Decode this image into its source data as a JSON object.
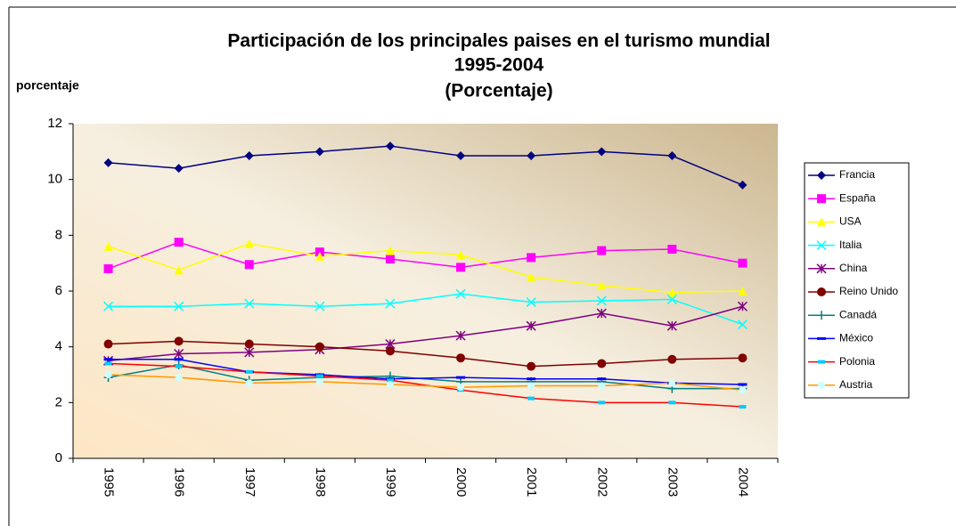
{
  "chart_data": {
    "type": "line",
    "title": "Participación de los principales paises en el turismo mundial",
    "subtitle": "1995-2004",
    "subtitle2": "(Porcentaje)",
    "y_label": "porcentaje",
    "categories": [
      "1995",
      "1996",
      "1997",
      "1998",
      "1999",
      "2000",
      "2001",
      "2002",
      "2003",
      "2004"
    ],
    "ylim": [
      0,
      12
    ],
    "yticks": [
      0,
      2,
      4,
      6,
      8,
      10,
      12
    ],
    "legend": "right",
    "series": [
      {
        "name": "Francia",
        "color": "#000080",
        "marker": "diamond",
        "values": [
          10.6,
          10.4,
          10.85,
          11.0,
          11.2,
          10.85,
          10.85,
          11.0,
          10.85,
          9.8
        ]
      },
      {
        "name": "España",
        "color": "#ff00ff",
        "marker": "square",
        "values": [
          6.8,
          7.75,
          6.95,
          7.4,
          7.15,
          6.85,
          7.2,
          7.45,
          7.5,
          7.0
        ]
      },
      {
        "name": "USA",
        "color": "#ffff00",
        "marker": "triangle",
        "values": [
          7.6,
          6.75,
          7.7,
          7.25,
          7.45,
          7.3,
          6.5,
          6.2,
          5.95,
          6.0
        ]
      },
      {
        "name": "Italia",
        "color": "#00ffff",
        "marker": "x",
        "values": [
          5.45,
          5.45,
          5.55,
          5.45,
          5.55,
          5.9,
          5.6,
          5.65,
          5.7,
          4.8
        ]
      },
      {
        "name": "China",
        "color": "#800080",
        "marker": "star",
        "values": [
          3.5,
          3.75,
          3.8,
          3.9,
          4.1,
          4.4,
          4.75,
          5.2,
          4.75,
          5.45
        ]
      },
      {
        "name": "Reino Unido",
        "color": "#800000",
        "marker": "circle",
        "values": [
          4.1,
          4.2,
          4.1,
          4.0,
          3.85,
          3.6,
          3.3,
          3.4,
          3.55,
          3.6
        ]
      },
      {
        "name": "Canadá",
        "color": "#008080",
        "marker": "plus",
        "values": [
          2.9,
          3.35,
          2.8,
          2.9,
          2.95,
          2.75,
          2.75,
          2.75,
          2.5,
          2.5
        ]
      },
      {
        "name": "México",
        "color": "#0000ff",
        "marker": "dash",
        "values": [
          3.55,
          3.55,
          3.1,
          3.0,
          2.85,
          2.9,
          2.85,
          2.85,
          2.7,
          2.65
        ]
      },
      {
        "name": "Polonia",
        "color": "#ff0000",
        "marker": "square-cyan",
        "values": [
          3.4,
          3.3,
          3.1,
          2.95,
          2.8,
          2.45,
          2.15,
          2.0,
          2.0,
          1.85
        ]
      },
      {
        "name": "Austria",
        "color": "#ff9900",
        "marker": "circle-cyan",
        "values": [
          3.0,
          2.9,
          2.7,
          2.75,
          2.65,
          2.55,
          2.6,
          2.6,
          2.7,
          2.45
        ]
      }
    ]
  }
}
